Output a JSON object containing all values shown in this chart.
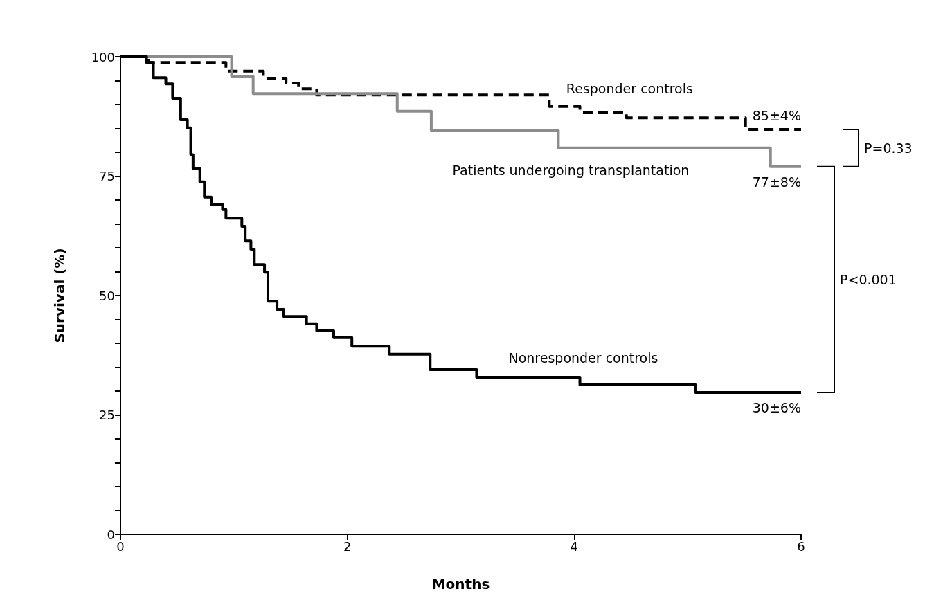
{
  "chart_data": {
    "type": "step",
    "xlabel": "Months",
    "ylabel": "Survival (%)",
    "xlim": [
      0,
      6
    ],
    "xticks": [
      0,
      2,
      4,
      6
    ],
    "ylim": [
      0,
      100
    ],
    "yticks": [
      0,
      {
        "value": 5,
        "label": null
      },
      {
        "value": 10,
        "label": null
      },
      {
        "value": 15,
        "label": null
      },
      {
        "value": 20,
        "label": null
      },
      25,
      {
        "value": 30,
        "label": null
      },
      {
        "value": 35,
        "label": null
      },
      {
        "value": 40,
        "label": null
      },
      {
        "value": 45,
        "label": null
      },
      50,
      {
        "value": 55,
        "label": null
      },
      {
        "value": 60,
        "label": null
      },
      {
        "value": 65,
        "label": null
      },
      {
        "value": 70,
        "label": null
      },
      75,
      {
        "value": 80,
        "label": null
      },
      {
        "value": 85,
        "label": null
      },
      {
        "value": 90,
        "label": null
      },
      {
        "value": 95,
        "label": null
      },
      100
    ],
    "grid": false,
    "legend": false,
    "marker": "none",
    "series": [
      {
        "name": "Responder controls",
        "color": "#000000",
        "line_style": "dashed",
        "x": [
          0,
          0.25,
          0.93,
          1.26,
          1.46,
          1.57,
          1.73,
          3.78,
          4.05,
          4.46,
          5.51,
          6
        ],
        "values": [
          100,
          98.8,
          97.0,
          95.5,
          94.5,
          93.3,
          92.0,
          89.6,
          88.4,
          87.2,
          84.8,
          84.8
        ]
      },
      {
        "name": "Patients undergoing transplantation",
        "color": "#8c8c8c",
        "line_style": "solid",
        "x": [
          0,
          0.98,
          1.17,
          2.44,
          2.74,
          3.86,
          5.73,
          6
        ],
        "values": [
          100,
          95.9,
          92.3,
          88.6,
          84.6,
          80.9,
          77.0,
          77.0
        ]
      },
      {
        "name": "Nonresponder controls",
        "color": "#000000",
        "line_style": "solid",
        "x": [
          0,
          0.23,
          0.29,
          0.4,
          0.46,
          0.53,
          0.59,
          0.62,
          0.64,
          0.7,
          0.74,
          0.8,
          0.9,
          0.93,
          1.07,
          1.1,
          1.15,
          1.18,
          1.27,
          1.3,
          1.38,
          1.44,
          1.64,
          1.73,
          1.88,
          2.04,
          2.37,
          2.73,
          3.14,
          4.05,
          5.07,
          6
        ],
        "values": [
          100,
          98.8,
          95.6,
          94.3,
          91.3,
          86.8,
          85.1,
          79.5,
          76.6,
          73.8,
          70.6,
          69.1,
          68.0,
          66.2,
          64.5,
          61.4,
          59.7,
          56.5,
          54.9,
          48.8,
          47.1,
          45.6,
          44.1,
          42.6,
          41.2,
          39.4,
          37.7,
          34.5,
          32.9,
          31.3,
          29.7,
          29.7
        ]
      }
    ],
    "annotations": [
      "85±4%",
      "77±8%",
      "30±6%",
      "P=0.33",
      "P<0.001"
    ]
  }
}
